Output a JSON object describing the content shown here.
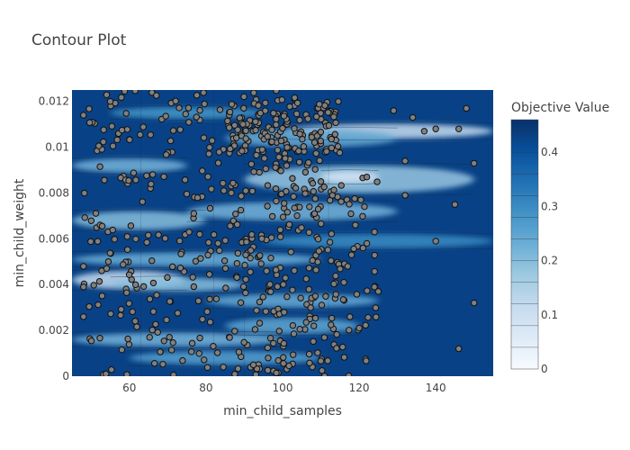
{
  "chart_data": {
    "type": "contour",
    "title": "Contour Plot",
    "xlabel": "min_child_samples",
    "ylabel": "min_child_weight",
    "xlim": [
      45,
      155
    ],
    "ylim": [
      0,
      0.0125
    ],
    "x_ticks": [
      60,
      80,
      100,
      120,
      140
    ],
    "x_tick_labels": [
      "60",
      "80",
      "100",
      "120",
      "140"
    ],
    "y_ticks": [
      0,
      0.002,
      0.004,
      0.006,
      0.008,
      0.01,
      0.012
    ],
    "y_tick_labels": [
      "0",
      "0.002",
      "0.004",
      "0.006",
      "0.008",
      "0.01",
      "0.012"
    ],
    "colorbar": {
      "title": "Objective Value",
      "range": [
        0,
        0.46
      ],
      "ticks": [
        0,
        0.1,
        0.2,
        0.3,
        0.4
      ],
      "tick_labels": [
        "0",
        "0.1",
        "0.2",
        "0.3",
        "0.4"
      ],
      "colors": [
        "#f7fbff",
        "#deebf7",
        "#c6dbef",
        "#9ecae1",
        "#6baed6",
        "#4292c6",
        "#2171b5",
        "#08519c",
        "#08306b"
      ]
    },
    "background_level": 0.43,
    "bands": [
      {
        "y": 0.0107,
        "x_from": 100,
        "x_to": 155,
        "value": 0.12,
        "half_height": 0.00032
      },
      {
        "y": 0.0104,
        "x_from": 85,
        "x_to": 130,
        "value": 0.24,
        "half_height": 0.0004
      },
      {
        "y": 0.0092,
        "x_from": 45,
        "x_to": 75,
        "value": 0.22,
        "half_height": 0.0003
      },
      {
        "y": 0.0086,
        "x_from": 90,
        "x_to": 150,
        "value": 0.18,
        "half_height": 0.0006
      },
      {
        "y": 0.0087,
        "x_from": 110,
        "x_to": 125,
        "value": 0.08,
        "half_height": 0.00025
      },
      {
        "y": 0.0072,
        "x_from": 75,
        "x_to": 130,
        "value": 0.22,
        "half_height": 0.0004
      },
      {
        "y": 0.0068,
        "x_from": 45,
        "x_to": 80,
        "value": 0.2,
        "half_height": 0.0004
      },
      {
        "y": 0.0051,
        "x_from": 45,
        "x_to": 110,
        "value": 0.23,
        "half_height": 0.0003
      },
      {
        "y": 0.0042,
        "x_from": 45,
        "x_to": 75,
        "value": 0.12,
        "half_height": 0.0004
      },
      {
        "y": 0.004,
        "x_from": 55,
        "x_to": 90,
        "value": 0.2,
        "half_height": 0.0003
      },
      {
        "y": 0.0033,
        "x_from": 80,
        "x_to": 125,
        "value": 0.24,
        "half_height": 0.0003
      },
      {
        "y": 0.0022,
        "x_from": 85,
        "x_to": 120,
        "value": 0.25,
        "half_height": 0.00035
      },
      {
        "y": 0.0016,
        "x_from": 45,
        "x_to": 100,
        "value": 0.22,
        "half_height": 0.0003
      },
      {
        "y": 0.0008,
        "x_from": 60,
        "x_to": 110,
        "value": 0.26,
        "half_height": 0.0003
      },
      {
        "y": 0.0115,
        "x_from": 55,
        "x_to": 95,
        "value": 0.28,
        "half_height": 0.00025
      },
      {
        "y": 0.0059,
        "x_from": 95,
        "x_to": 155,
        "value": 0.3,
        "half_height": 0.0003
      }
    ],
    "point_clusters": [
      {
        "x": [
          48,
          65
        ],
        "y": [
          0,
          0.0125
        ],
        "count": 95
      },
      {
        "x": [
          65,
          85
        ],
        "y": [
          0,
          0.0125
        ],
        "count": 110
      },
      {
        "x": [
          85,
          100
        ],
        "y": [
          0,
          0.0125
        ],
        "count": 150
      },
      {
        "x": [
          100,
          115
        ],
        "y": [
          0,
          0.0125
        ],
        "count": 150
      },
      {
        "x": [
          115,
          125
        ],
        "y": [
          0,
          0.009
        ],
        "count": 35
      },
      {
        "x": [
          85,
          115
        ],
        "y": [
          0.0098,
          0.012
        ],
        "count": 90
      }
    ],
    "points": [
      [
        48,
        0.0114
      ],
      [
        55,
        0.012
      ],
      [
        48,
        0.0048
      ],
      [
        48,
        0.0039
      ],
      [
        48,
        0.0026
      ],
      [
        122,
        0.0087
      ],
      [
        132,
        0.0094
      ],
      [
        137,
        0.0107
      ],
      [
        140,
        0.0108
      ],
      [
        146,
        0.0108
      ],
      [
        129,
        0.0116
      ],
      [
        134,
        0.0113
      ],
      [
        148,
        0.0117
      ],
      [
        150,
        0.0093
      ],
      [
        132,
        0.0079
      ],
      [
        145,
        0.0075
      ],
      [
        140,
        0.0059
      ],
      [
        125,
        0.0037
      ],
      [
        150,
        0.0032
      ],
      [
        146,
        0.0012
      ],
      [
        121,
        0.0056
      ],
      [
        124,
        0.0063
      ],
      [
        118,
        0.0053
      ],
      [
        117,
        0.0048
      ],
      [
        116,
        0.0041
      ],
      [
        120,
        0.0021
      ],
      [
        113,
        0.0079
      ],
      [
        110,
        0.0085
      ],
      [
        119,
        0.0066
      ],
      [
        122,
        0.0058
      ]
    ]
  }
}
